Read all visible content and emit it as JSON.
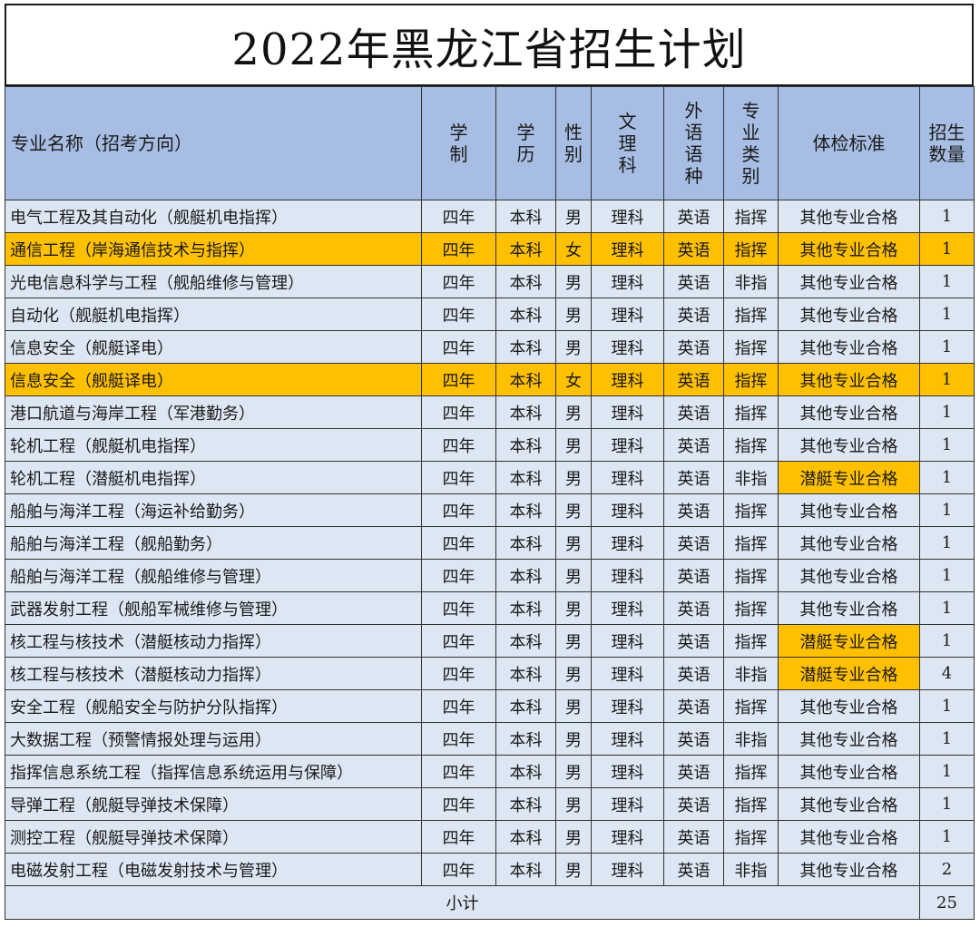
{
  "title": "2022年黑龙江省招生计划",
  "headers": {
    "name": "专业名称（招考方向）",
    "xuezhi": [
      "学",
      "制"
    ],
    "xueli": [
      "学",
      "历"
    ],
    "xingbie": [
      "性",
      "别"
    ],
    "wenli": [
      "文",
      "理",
      "科"
    ],
    "waiyu": [
      "外",
      "语",
      "语",
      "种"
    ],
    "zhuanye": [
      "专",
      "业",
      "类",
      "别"
    ],
    "tijian": "体检标准",
    "shuliang": [
      "招生",
      "数量"
    ]
  },
  "rows": [
    {
      "name": "电气工程及其自动化（舰艇机电指挥）",
      "xuezhi": "四年",
      "xueli": "本科",
      "xingbie": "男",
      "wenli": "理科",
      "waiyu": "英语",
      "leibie": "指挥",
      "tijian": "其他专业合格",
      "shuliang": "1",
      "highlight": false,
      "tijian_highlight": false
    },
    {
      "name": "通信工程（岸海通信技术与指挥）",
      "xuezhi": "四年",
      "xueli": "本科",
      "xingbie": "女",
      "wenli": "理科",
      "waiyu": "英语",
      "leibie": "指挥",
      "tijian": "其他专业合格",
      "shuliang": "1",
      "highlight": true,
      "tijian_highlight": false
    },
    {
      "name": "光电信息科学与工程（舰船维修与管理）",
      "xuezhi": "四年",
      "xueli": "本科",
      "xingbie": "男",
      "wenli": "理科",
      "waiyu": "英语",
      "leibie": "非指",
      "tijian": "其他专业合格",
      "shuliang": "1",
      "highlight": false,
      "tijian_highlight": false
    },
    {
      "name": "自动化（舰艇机电指挥）",
      "xuezhi": "四年",
      "xueli": "本科",
      "xingbie": "男",
      "wenli": "理科",
      "waiyu": "英语",
      "leibie": "指挥",
      "tijian": "其他专业合格",
      "shuliang": "1",
      "highlight": false,
      "tijian_highlight": false
    },
    {
      "name": "信息安全（舰艇译电）",
      "xuezhi": "四年",
      "xueli": "本科",
      "xingbie": "男",
      "wenli": "理科",
      "waiyu": "英语",
      "leibie": "指挥",
      "tijian": "其他专业合格",
      "shuliang": "1",
      "highlight": false,
      "tijian_highlight": false
    },
    {
      "name": "信息安全（舰艇译电）",
      "xuezhi": "四年",
      "xueli": "本科",
      "xingbie": "女",
      "wenli": "理科",
      "waiyu": "英语",
      "leibie": "指挥",
      "tijian": "其他专业合格",
      "shuliang": "1",
      "highlight": true,
      "tijian_highlight": false
    },
    {
      "name": "港口航道与海岸工程（军港勤务）",
      "xuezhi": "四年",
      "xueli": "本科",
      "xingbie": "男",
      "wenli": "理科",
      "waiyu": "英语",
      "leibie": "指挥",
      "tijian": "其他专业合格",
      "shuliang": "1",
      "highlight": false,
      "tijian_highlight": false
    },
    {
      "name": "轮机工程（舰艇机电指挥）",
      "xuezhi": "四年",
      "xueli": "本科",
      "xingbie": "男",
      "wenli": "理科",
      "waiyu": "英语",
      "leibie": "指挥",
      "tijian": "其他专业合格",
      "shuliang": "1",
      "highlight": false,
      "tijian_highlight": false
    },
    {
      "name": "轮机工程（潜艇机电指挥）",
      "xuezhi": "四年",
      "xueli": "本科",
      "xingbie": "男",
      "wenli": "理科",
      "waiyu": "英语",
      "leibie": "非指",
      "tijian": "潜艇专业合格",
      "shuliang": "1",
      "highlight": false,
      "tijian_highlight": true
    },
    {
      "name": "船舶与海洋工程（海运补给勤务）",
      "xuezhi": "四年",
      "xueli": "本科",
      "xingbie": "男",
      "wenli": "理科",
      "waiyu": "英语",
      "leibie": "指挥",
      "tijian": "其他专业合格",
      "shuliang": "1",
      "highlight": false,
      "tijian_highlight": false
    },
    {
      "name": "船舶与海洋工程（舰船勤务）",
      "xuezhi": "四年",
      "xueli": "本科",
      "xingbie": "男",
      "wenli": "理科",
      "waiyu": "英语",
      "leibie": "指挥",
      "tijian": "其他专业合格",
      "shuliang": "1",
      "highlight": false,
      "tijian_highlight": false
    },
    {
      "name": "船舶与海洋工程（舰船维修与管理）",
      "xuezhi": "四年",
      "xueli": "本科",
      "xingbie": "男",
      "wenli": "理科",
      "waiyu": "英语",
      "leibie": "指挥",
      "tijian": "其他专业合格",
      "shuliang": "1",
      "highlight": false,
      "tijian_highlight": false
    },
    {
      "name": "武器发射工程（舰船军械维修与管理）",
      "xuezhi": "四年",
      "xueli": "本科",
      "xingbie": "男",
      "wenli": "理科",
      "waiyu": "英语",
      "leibie": "指挥",
      "tijian": "其他专业合格",
      "shuliang": "1",
      "highlight": false,
      "tijian_highlight": false
    },
    {
      "name": "核工程与核技术（潜艇核动力指挥）",
      "xuezhi": "四年",
      "xueli": "本科",
      "xingbie": "男",
      "wenli": "理科",
      "waiyu": "英语",
      "leibie": "指挥",
      "tijian": "潜艇专业合格",
      "shuliang": "1",
      "highlight": false,
      "tijian_highlight": true
    },
    {
      "name": "核工程与核技术（潜艇核动力指挥）",
      "xuezhi": "四年",
      "xueli": "本科",
      "xingbie": "男",
      "wenli": "理科",
      "waiyu": "英语",
      "leibie": "非指",
      "tijian": "潜艇专业合格",
      "shuliang": "4",
      "highlight": false,
      "tijian_highlight": true
    },
    {
      "name": "安全工程（舰船安全与防护分队指挥）",
      "xuezhi": "四年",
      "xueli": "本科",
      "xingbie": "男",
      "wenli": "理科",
      "waiyu": "英语",
      "leibie": "指挥",
      "tijian": "其他专业合格",
      "shuliang": "1",
      "highlight": false,
      "tijian_highlight": false
    },
    {
      "name": "大数据工程（预警情报处理与运用）",
      "xuezhi": "四年",
      "xueli": "本科",
      "xingbie": "男",
      "wenli": "理科",
      "waiyu": "英语",
      "leibie": "非指",
      "tijian": "其他专业合格",
      "shuliang": "1",
      "highlight": false,
      "tijian_highlight": false
    },
    {
      "name": "指挥信息系统工程（指挥信息系统运用与保障）",
      "xuezhi": "四年",
      "xueli": "本科",
      "xingbie": "男",
      "wenli": "理科",
      "waiyu": "英语",
      "leibie": "指挥",
      "tijian": "其他专业合格",
      "shuliang": "1",
      "highlight": false,
      "tijian_highlight": false
    },
    {
      "name": "导弹工程（舰艇导弹技术保障）",
      "xuezhi": "四年",
      "xueli": "本科",
      "xingbie": "男",
      "wenli": "理科",
      "waiyu": "英语",
      "leibie": "指挥",
      "tijian": "其他专业合格",
      "shuliang": "1",
      "highlight": false,
      "tijian_highlight": false
    },
    {
      "name": "测控工程（舰艇导弹技术保障）",
      "xuezhi": "四年",
      "xueli": "本科",
      "xingbie": "男",
      "wenli": "理科",
      "waiyu": "英语",
      "leibie": "指挥",
      "tijian": "其他专业合格",
      "shuliang": "1",
      "highlight": false,
      "tijian_highlight": false
    },
    {
      "name": "电磁发射工程（电磁发射技术与管理）",
      "xuezhi": "四年",
      "xueli": "本科",
      "xingbie": "男",
      "wenli": "理科",
      "waiyu": "英语",
      "leibie": "非指",
      "tijian": "其他专业合格",
      "shuliang": "2",
      "highlight": false,
      "tijian_highlight": false
    }
  ],
  "footer": {
    "label": "小计",
    "total": "25"
  },
  "colors": {
    "header_bg": "#a7bde3",
    "row_bg": "#dde6f3",
    "highlight": "#ffc000"
  }
}
